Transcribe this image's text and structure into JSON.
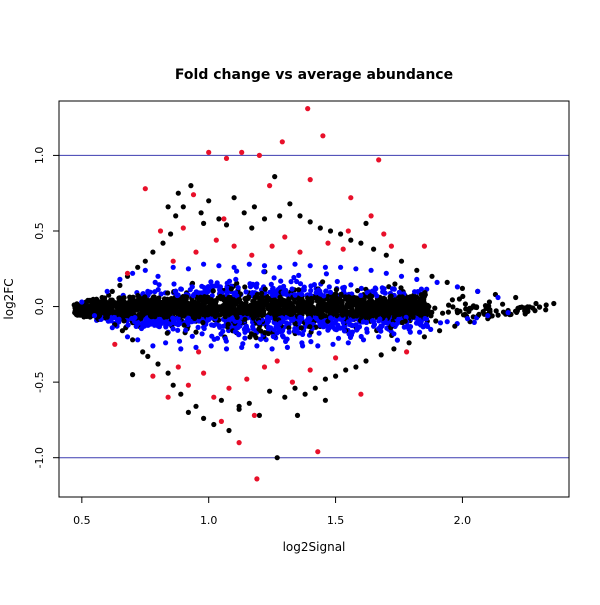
{
  "chart_data": {
    "type": "scatter",
    "title": "Fold change vs average abundance",
    "xlabel": "log2Signal",
    "ylabel": "log2FC",
    "xlim": [
      0.41,
      2.42
    ],
    "ylim": [
      -1.26,
      1.36
    ],
    "xticks": [
      0.5,
      1.0,
      1.5,
      2.0
    ],
    "xtick_labels": [
      "0.5",
      "1.0",
      "1.5",
      "2.0"
    ],
    "yticks": [
      -1.0,
      -0.5,
      0.0,
      0.5,
      1.0
    ],
    "ytick_labels": [
      "-1.0",
      "-0.5",
      "0.0",
      "0.5",
      "1.0"
    ],
    "reference_lines": [
      {
        "axis": "y",
        "value": 1.0,
        "color": "#3b3bb0"
      },
      {
        "axis": "y",
        "value": -1.0,
        "color": "#3b3bb0"
      }
    ],
    "grid": false,
    "legend": "none",
    "series": [
      {
        "color": "#000000",
        "description_of_group": "all features",
        "points": [
          [
            0.47,
            0.01
          ],
          [
            0.49,
            -0.02
          ],
          [
            0.52,
            0.03
          ],
          [
            0.55,
            -0.04
          ],
          [
            0.58,
            0.06
          ],
          [
            0.6,
            -0.07
          ],
          [
            0.62,
            0.1
          ],
          [
            0.63,
            -0.12
          ],
          [
            0.65,
            0.14
          ],
          [
            0.66,
            -0.16
          ],
          [
            0.68,
            0.2
          ],
          [
            0.7,
            -0.22
          ],
          [
            0.72,
            0.26
          ],
          [
            0.74,
            -0.3
          ],
          [
            0.75,
            0.3
          ],
          [
            0.76,
            -0.33
          ],
          [
            0.78,
            0.36
          ],
          [
            0.8,
            -0.38
          ],
          [
            0.82,
            0.42
          ],
          [
            0.84,
            -0.44
          ],
          [
            0.85,
            0.48
          ],
          [
            0.86,
            -0.52
          ],
          [
            0.87,
            0.6
          ],
          [
            0.88,
            0.75
          ],
          [
            0.89,
            -0.58
          ],
          [
            0.9,
            0.66
          ],
          [
            0.92,
            -0.7
          ],
          [
            0.93,
            0.8
          ],
          [
            0.95,
            -0.66
          ],
          [
            0.97,
            0.62
          ],
          [
            0.98,
            -0.74
          ],
          [
            1.0,
            0.7
          ],
          [
            1.02,
            -0.78
          ],
          [
            1.04,
            0.58
          ],
          [
            1.05,
            -0.62
          ],
          [
            1.07,
            0.54
          ],
          [
            1.08,
            -0.82
          ],
          [
            1.1,
            0.72
          ],
          [
            1.12,
            -0.68
          ],
          [
            1.14,
            0.62
          ],
          [
            1.16,
            -0.64
          ],
          [
            1.18,
            0.66
          ],
          [
            1.2,
            -0.72
          ],
          [
            1.22,
            0.58
          ],
          [
            1.24,
            -0.56
          ],
          [
            1.26,
            0.86
          ],
          [
            1.27,
            -1.0
          ],
          [
            1.28,
            0.6
          ],
          [
            1.3,
            -0.6
          ],
          [
            1.32,
            0.68
          ],
          [
            1.34,
            -0.54
          ],
          [
            1.36,
            0.6
          ],
          [
            1.38,
            -0.58
          ],
          [
            1.4,
            0.56
          ],
          [
            1.42,
            -0.54
          ],
          [
            1.44,
            0.52
          ],
          [
            1.46,
            -0.48
          ],
          [
            1.48,
            0.5
          ],
          [
            1.5,
            -0.46
          ],
          [
            1.52,
            0.48
          ],
          [
            1.54,
            -0.42
          ],
          [
            1.56,
            0.44
          ],
          [
            1.58,
            -0.4
          ],
          [
            1.6,
            0.42
          ],
          [
            1.62,
            -0.36
          ],
          [
            1.65,
            0.38
          ],
          [
            1.68,
            -0.32
          ],
          [
            1.7,
            0.34
          ],
          [
            1.73,
            -0.28
          ],
          [
            1.76,
            0.3
          ],
          [
            1.79,
            -0.24
          ],
          [
            1.82,
            0.24
          ],
          [
            1.85,
            -0.2
          ],
          [
            1.88,
            0.2
          ],
          [
            1.91,
            -0.16
          ],
          [
            1.94,
            0.16
          ],
          [
            1.97,
            -0.13
          ],
          [
            2.0,
            0.12
          ],
          [
            2.03,
            -0.1
          ],
          [
            2.06,
            0.1
          ],
          [
            2.1,
            -0.08
          ],
          [
            2.13,
            0.08
          ],
          [
            2.17,
            -0.05
          ],
          [
            2.21,
            0.06
          ],
          [
            2.25,
            -0.03
          ],
          [
            2.29,
            0.02
          ],
          [
            2.33,
            0.01
          ],
          [
            2.36,
            0.02
          ],
          [
            0.7,
            -0.45
          ],
          [
            0.84,
            0.66
          ],
          [
            0.98,
            0.55
          ],
          [
            1.46,
            -0.62
          ],
          [
            1.17,
            0.52
          ],
          [
            1.62,
            0.55
          ],
          [
            1.35,
            -0.72
          ],
          [
            1.12,
            -0.66
          ]
        ]
      },
      {
        "color": "#e8102a",
        "description_of_group": "moderate fold change",
        "points": [
          [
            0.63,
            -0.25
          ],
          [
            0.68,
            0.22
          ],
          [
            0.75,
            0.78
          ],
          [
            0.78,
            -0.46
          ],
          [
            0.81,
            0.5
          ],
          [
            0.84,
            -0.6
          ],
          [
            0.86,
            0.3
          ],
          [
            0.88,
            -0.4
          ],
          [
            0.9,
            0.52
          ],
          [
            0.92,
            -0.52
          ],
          [
            0.95,
            0.36
          ],
          [
            0.98,
            -0.44
          ],
          [
            1.0,
            1.02
          ],
          [
            1.02,
            -0.6
          ],
          [
            1.03,
            0.44
          ],
          [
            1.05,
            -0.76
          ],
          [
            1.07,
            0.98
          ],
          [
            1.08,
            -0.54
          ],
          [
            1.1,
            0.4
          ],
          [
            1.12,
            -0.9
          ],
          [
            1.13,
            1.02
          ],
          [
            1.15,
            -0.48
          ],
          [
            1.17,
            0.34
          ],
          [
            1.19,
            -1.14
          ],
          [
            1.2,
            1.0
          ],
          [
            1.22,
            -0.4
          ],
          [
            1.25,
            0.4
          ],
          [
            1.27,
            -0.36
          ],
          [
            1.29,
            1.09
          ],
          [
            1.3,
            0.46
          ],
          [
            1.33,
            -0.5
          ],
          [
            1.36,
            0.36
          ],
          [
            1.39,
            1.31
          ],
          [
            1.4,
            -0.42
          ],
          [
            1.43,
            -0.96
          ],
          [
            1.45,
            1.13
          ],
          [
            1.47,
            0.42
          ],
          [
            1.5,
            -0.34
          ],
          [
            1.53,
            0.38
          ],
          [
            1.56,
            0.72
          ],
          [
            1.6,
            -0.58
          ],
          [
            1.64,
            0.6
          ],
          [
            1.67,
            0.97
          ],
          [
            1.72,
            0.4
          ],
          [
            1.78,
            -0.3
          ],
          [
            1.85,
            0.4
          ],
          [
            0.94,
            0.74
          ],
          [
            1.24,
            0.8
          ],
          [
            1.55,
            0.5
          ],
          [
            1.18,
            -0.72
          ],
          [
            1.06,
            0.58
          ],
          [
            0.96,
            -0.3
          ],
          [
            1.4,
            0.84
          ],
          [
            1.69,
            0.48
          ]
        ]
      },
      {
        "color": "#0000ff",
        "description_of_group": "small fold change",
        "points": [
          [
            0.5,
            0.03
          ],
          [
            0.55,
            -0.06
          ],
          [
            0.6,
            0.1
          ],
          [
            0.62,
            -0.14
          ],
          [
            0.65,
            0.18
          ],
          [
            0.68,
            -0.2
          ],
          [
            0.7,
            0.22
          ],
          [
            0.72,
            -0.22
          ],
          [
            0.75,
            0.24
          ],
          [
            0.78,
            -0.26
          ],
          [
            0.8,
            0.2
          ],
          [
            0.83,
            -0.24
          ],
          [
            0.86,
            0.26
          ],
          [
            0.89,
            -0.28
          ],
          [
            0.92,
            0.25
          ],
          [
            0.95,
            -0.27
          ],
          [
            0.98,
            0.28
          ],
          [
            1.01,
            -0.26
          ],
          [
            1.04,
            0.27
          ],
          [
            1.07,
            -0.28
          ],
          [
            1.1,
            0.26
          ],
          [
            1.13,
            -0.27
          ],
          [
            1.16,
            0.28
          ],
          [
            1.19,
            -0.26
          ],
          [
            1.22,
            0.27
          ],
          [
            1.25,
            -0.28
          ],
          [
            1.28,
            0.26
          ],
          [
            1.31,
            -0.27
          ],
          [
            1.34,
            0.28
          ],
          [
            1.37,
            -0.26
          ],
          [
            1.4,
            0.27
          ],
          [
            1.43,
            -0.26
          ],
          [
            1.46,
            0.26
          ],
          [
            1.49,
            -0.25
          ],
          [
            1.52,
            0.26
          ],
          [
            1.55,
            -0.24
          ],
          [
            1.58,
            0.25
          ],
          [
            1.61,
            -0.22
          ],
          [
            1.64,
            0.24
          ],
          [
            1.67,
            -0.2
          ],
          [
            1.7,
            0.22
          ],
          [
            1.73,
            -0.18
          ],
          [
            1.76,
            0.2
          ],
          [
            1.79,
            -0.15
          ],
          [
            1.82,
            0.18
          ],
          [
            1.86,
            -0.12
          ],
          [
            1.9,
            0.16
          ],
          [
            1.94,
            -0.1
          ],
          [
            1.98,
            0.13
          ],
          [
            2.02,
            -0.08
          ],
          [
            2.06,
            0.1
          ],
          [
            2.1,
            -0.06
          ],
          [
            2.14,
            0.06
          ],
          [
            2.18,
            -0.04
          ]
        ]
      }
    ]
  }
}
